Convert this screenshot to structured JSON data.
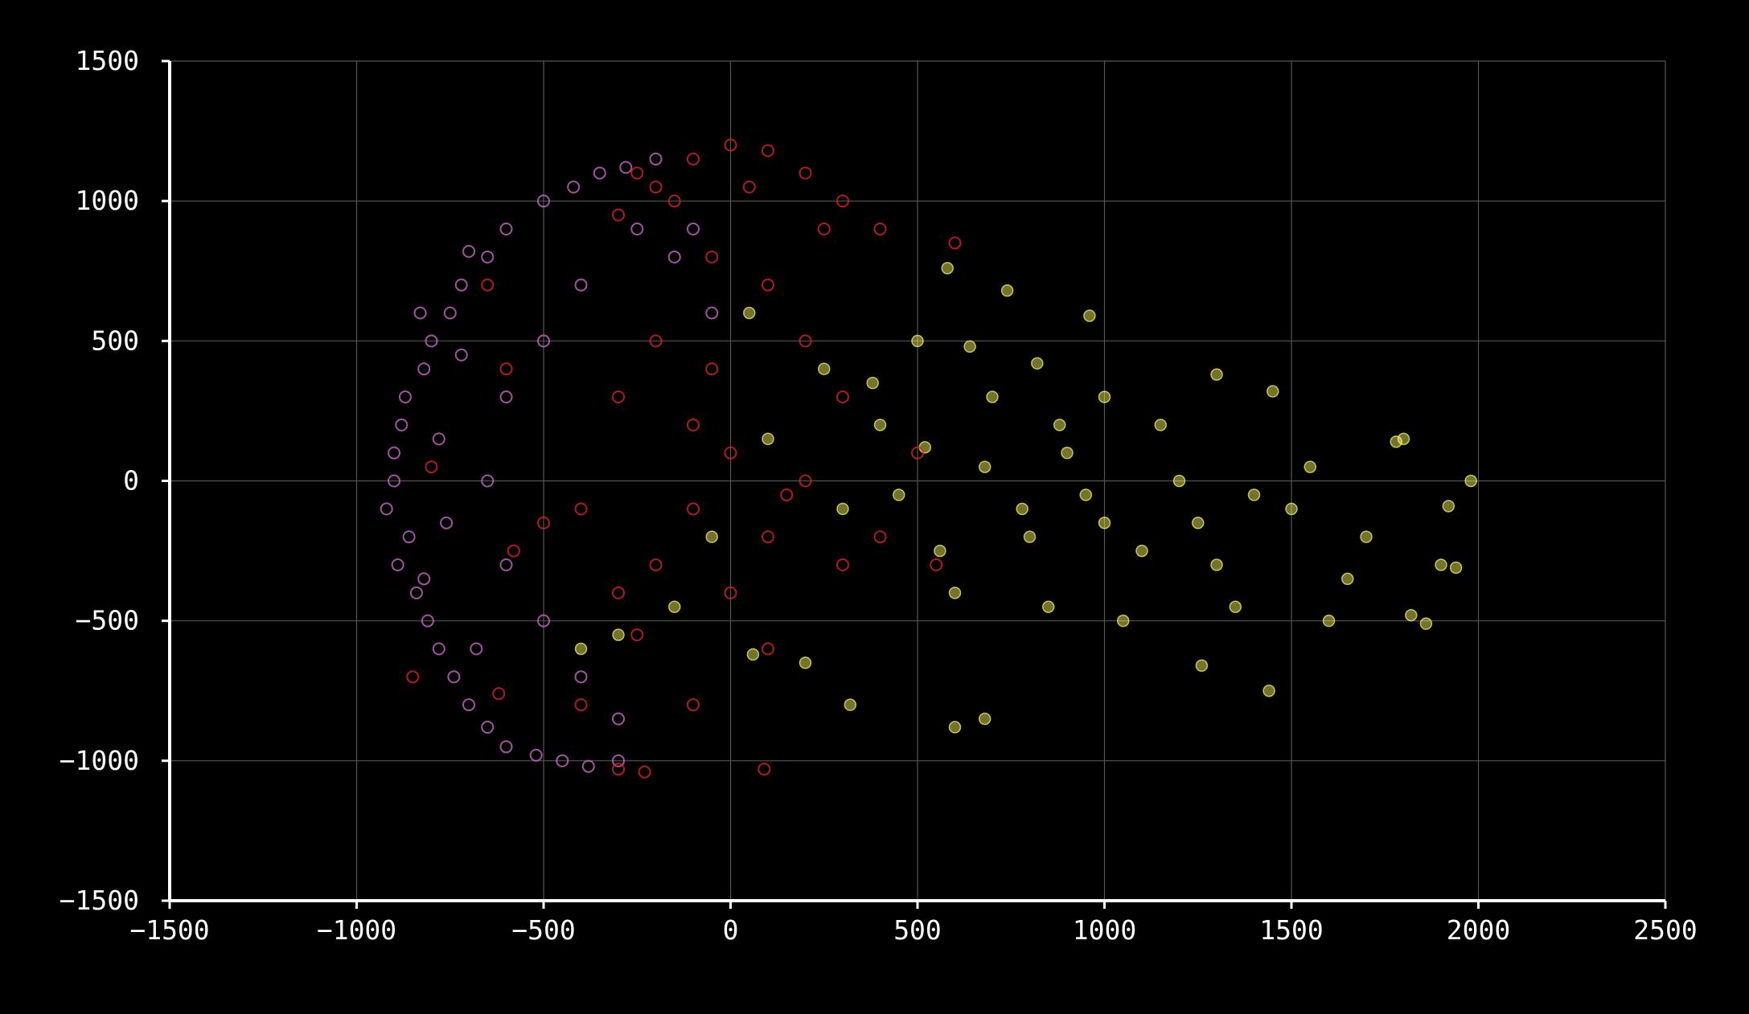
{
  "chart_data": {
    "type": "scatter",
    "title": "",
    "xlabel": "",
    "ylabel": "",
    "xlim": [
      -1500,
      2500
    ],
    "ylim": [
      -1500,
      1500
    ],
    "x_ticks": [
      -1500,
      -1000,
      -500,
      0,
      500,
      1000,
      1500,
      2000,
      2500
    ],
    "y_ticks": [
      -1500,
      -1000,
      -500,
      0,
      500,
      1000,
      1500
    ],
    "x_tick_labels": [
      "−1500",
      "−1000",
      "−500",
      "0",
      "500",
      "1000",
      "1500",
      "2000",
      "2500"
    ],
    "y_tick_labels": [
      "−1500",
      "−1000",
      "−500",
      "0",
      "500",
      "1000",
      "1500"
    ],
    "grid": true,
    "legend": "none",
    "background": "#000000",
    "series": [
      {
        "color": "#ffff66",
        "marker": "filled-circle",
        "points": [
          [
            800,
            -200
          ],
          [
            1000,
            -150
          ],
          [
            1100,
            -250
          ],
          [
            900,
            100
          ],
          [
            1200,
            0
          ],
          [
            700,
            300
          ],
          [
            600,
            -400
          ],
          [
            1300,
            -300
          ],
          [
            1500,
            -100
          ],
          [
            1700,
            -200
          ],
          [
            1900,
            -300
          ],
          [
            1980,
            0
          ],
          [
            1800,
            150
          ],
          [
            600,
            -880
          ],
          [
            680,
            -850
          ],
          [
            320,
            -800
          ],
          [
            200,
            -650
          ],
          [
            60,
            -620
          ],
          [
            1300,
            380
          ],
          [
            1450,
            320
          ],
          [
            740,
            680
          ],
          [
            960,
            590
          ],
          [
            580,
            760
          ],
          [
            1440,
            -750
          ],
          [
            1260,
            -660
          ],
          [
            1820,
            -480
          ],
          [
            1860,
            -510
          ],
          [
            1940,
            -310
          ],
          [
            1920,
            -90
          ],
          [
            1780,
            140
          ],
          [
            500,
            500
          ],
          [
            400,
            200
          ],
          [
            300,
            -100
          ],
          [
            250,
            400
          ],
          [
            100,
            150
          ],
          [
            -50,
            -200
          ],
          [
            -150,
            -450
          ],
          [
            -300,
            -550
          ],
          [
            -400,
            -600
          ],
          [
            50,
            600
          ],
          [
            1000,
            300
          ],
          [
            1150,
            200
          ],
          [
            850,
            -450
          ],
          [
            1050,
            -500
          ],
          [
            1350,
            -450
          ],
          [
            1600,
            -500
          ],
          [
            1650,
            -350
          ],
          [
            1550,
            50
          ],
          [
            1400,
            -50
          ],
          [
            1250,
            -150
          ],
          [
            950,
            -50
          ],
          [
            880,
            200
          ],
          [
            780,
            -100
          ],
          [
            680,
            50
          ],
          [
            560,
            -250
          ],
          [
            450,
            -50
          ],
          [
            380,
            350
          ],
          [
            520,
            120
          ],
          [
            640,
            480
          ],
          [
            820,
            420
          ]
        ]
      },
      {
        "color": "#cc66cc",
        "marker": "hollow-circle",
        "points": [
          [
            -900,
            0
          ],
          [
            -880,
            200
          ],
          [
            -860,
            -200
          ],
          [
            -820,
            400
          ],
          [
            -840,
            -400
          ],
          [
            -750,
            600
          ],
          [
            -780,
            -600
          ],
          [
            -650,
            800
          ],
          [
            -700,
            -800
          ],
          [
            -500,
            1000
          ],
          [
            -600,
            -950
          ],
          [
            -350,
            1100
          ],
          [
            -450,
            -1000
          ],
          [
            -200,
            1150
          ],
          [
            -300,
            -1000
          ],
          [
            -920,
            -100
          ],
          [
            -900,
            100
          ],
          [
            -890,
            -300
          ],
          [
            -870,
            300
          ],
          [
            -800,
            500
          ],
          [
            -810,
            -500
          ],
          [
            -720,
            700
          ],
          [
            -740,
            -700
          ],
          [
            -600,
            900
          ],
          [
            -650,
            -880
          ],
          [
            -420,
            1050
          ],
          [
            -520,
            -980
          ],
          [
            -280,
            1120
          ],
          [
            -380,
            -1020
          ],
          [
            -250,
            900
          ],
          [
            -400,
            700
          ],
          [
            -500,
            500
          ],
          [
            -600,
            300
          ],
          [
            -650,
            0
          ],
          [
            -600,
            -300
          ],
          [
            -500,
            -500
          ],
          [
            -400,
            -700
          ],
          [
            -300,
            -850
          ],
          [
            -150,
            800
          ],
          [
            -50,
            600
          ],
          [
            -100,
            900
          ],
          [
            -680,
            -600
          ],
          [
            -720,
            450
          ],
          [
            -780,
            150
          ],
          [
            -760,
            -150
          ],
          [
            -820,
            -350
          ],
          [
            -830,
            600
          ],
          [
            -700,
            820
          ]
        ]
      },
      {
        "color": "#dd2222",
        "marker": "hollow-circle",
        "points": [
          [
            0,
            1200
          ],
          [
            100,
            1180
          ],
          [
            -100,
            1150
          ],
          [
            200,
            1100
          ],
          [
            300,
            1000
          ],
          [
            400,
            900
          ],
          [
            -200,
            1050
          ],
          [
            -300,
            950
          ],
          [
            -50,
            800
          ],
          [
            100,
            700
          ],
          [
            200,
            500
          ],
          [
            300,
            300
          ],
          [
            200,
            0
          ],
          [
            100,
            -200
          ],
          [
            0,
            -400
          ],
          [
            -200,
            -300
          ],
          [
            -300,
            -400
          ],
          [
            -400,
            -100
          ],
          [
            -100,
            200
          ],
          [
            -200,
            500
          ],
          [
            -300,
            300
          ],
          [
            300,
            -300
          ],
          [
            400,
            -200
          ],
          [
            500,
            100
          ],
          [
            550,
            -300
          ],
          [
            -250,
            1100
          ],
          [
            -150,
            1000
          ],
          [
            50,
            1050
          ],
          [
            250,
            900
          ],
          [
            -50,
            400
          ],
          [
            -400,
            -800
          ],
          [
            -300,
            -1030
          ],
          [
            -250,
            -550
          ],
          [
            -100,
            -800
          ],
          [
            100,
            -600
          ],
          [
            600,
            850
          ],
          [
            -850,
            -700
          ],
          [
            -620,
            -760
          ],
          [
            -230,
            -1040
          ],
          [
            90,
            -1030
          ],
          [
            -650,
            700
          ],
          [
            -580,
            -250
          ],
          [
            -800,
            50
          ],
          [
            -600,
            400
          ],
          [
            -100,
            -100
          ],
          [
            150,
            -50
          ],
          [
            0,
            100
          ],
          [
            -500,
            -150
          ]
        ]
      }
    ]
  }
}
